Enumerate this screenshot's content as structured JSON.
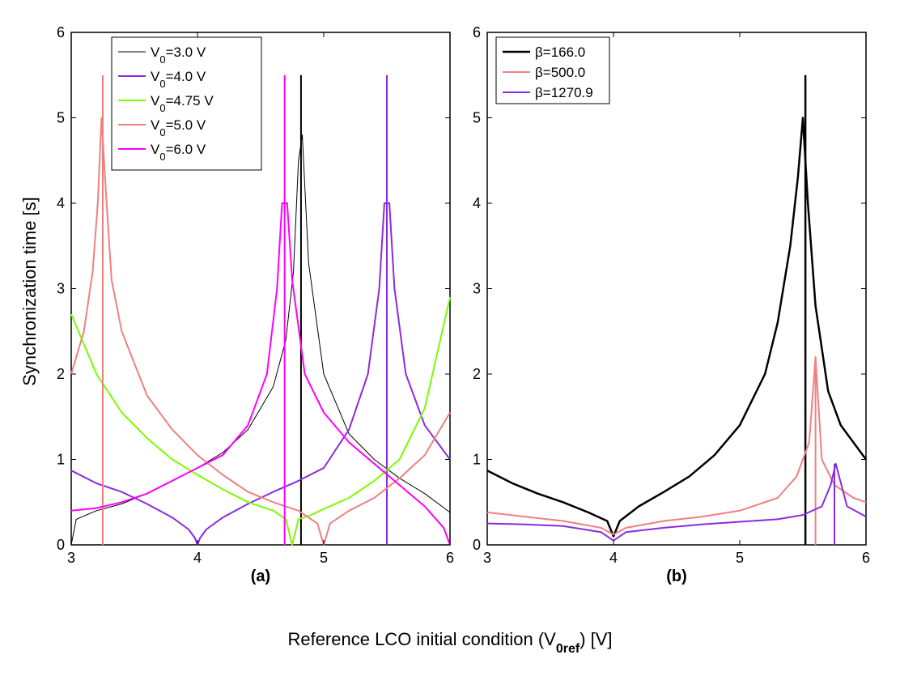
{
  "figure": {
    "ylabel": "Synchronization time  [s]",
    "xlabel_main": "Reference LCO initial condition (V",
    "xlabel_sub": "0ref",
    "xlabel_tail": ")  [V]"
  },
  "chart_data": [
    {
      "type": "line",
      "panel_label": "(a)",
      "xlim": [
        3,
        6
      ],
      "ylim": [
        0,
        6
      ],
      "xticks": [
        3,
        4,
        5,
        6
      ],
      "yticks": [
        0,
        1,
        2,
        3,
        4,
        5,
        6
      ],
      "grid": false,
      "legend_position": "top-left",
      "series": [
        {
          "name": "V₀=3.0 V",
          "legend_main": "V",
          "legend_sub": "0",
          "legend_tail": "=3.0 V",
          "color": "#000000",
          "width": 1,
          "x": [
            3.0,
            3.04,
            3.2,
            3.4,
            3.6,
            3.8,
            4.0,
            4.2,
            4.4,
            4.6,
            4.7,
            4.76,
            4.8,
            4.83,
            4.88,
            5.0,
            5.2,
            5.4,
            5.6,
            5.8,
            6.0
          ],
          "y": [
            0.0,
            0.3,
            0.4,
            0.48,
            0.6,
            0.75,
            0.9,
            1.08,
            1.35,
            1.85,
            2.4,
            3.2,
            4.5,
            4.8,
            3.3,
            2.0,
            1.3,
            1.0,
            0.78,
            0.6,
            0.38
          ],
          "spikes": [
            {
              "x": 4.82,
              "y": 5.5
            }
          ]
        },
        {
          "name": "V₀=4.0 V",
          "legend_main": "V",
          "legend_sub": "0",
          "legend_tail": "=4.0 V",
          "color": "#8a2be2",
          "width": 2,
          "x": [
            3.0,
            3.2,
            3.4,
            3.6,
            3.8,
            3.93,
            3.98,
            4.0,
            4.02,
            4.07,
            4.2,
            4.4,
            4.6,
            4.8,
            5.0,
            5.2,
            5.35,
            5.44,
            5.48,
            5.52,
            5.56,
            5.65,
            5.8,
            6.0
          ],
          "y": [
            0.87,
            0.72,
            0.62,
            0.48,
            0.32,
            0.18,
            0.08,
            0.0,
            0.08,
            0.18,
            0.32,
            0.48,
            0.62,
            0.75,
            0.9,
            1.35,
            2.0,
            3.0,
            4.0,
            4.0,
            3.0,
            2.0,
            1.4,
            1.0
          ],
          "spikes": [
            {
              "x": 5.5,
              "y": 5.5
            }
          ]
        },
        {
          "name": "V₀=4.75 V",
          "legend_main": "V",
          "legend_sub": "0",
          "legend_tail": "=4.75 V",
          "color": "#7cfc00",
          "width": 2,
          "x": [
            3.0,
            3.2,
            3.4,
            3.6,
            3.8,
            4.0,
            4.2,
            4.4,
            4.6,
            4.7,
            4.75,
            4.8,
            4.9,
            5.0,
            5.2,
            5.4,
            5.6,
            5.8,
            6.0
          ],
          "y": [
            2.7,
            2.0,
            1.55,
            1.25,
            1.0,
            0.82,
            0.65,
            0.5,
            0.4,
            0.3,
            0.0,
            0.3,
            0.35,
            0.42,
            0.55,
            0.75,
            1.0,
            1.6,
            2.9
          ],
          "spikes": []
        },
        {
          "name": "V₀=5.0 V",
          "legend_main": "V",
          "legend_sub": "0",
          "legend_tail": "=5.0 V",
          "color": "#f08080",
          "width": 2,
          "x": [
            3.0,
            3.1,
            3.17,
            3.21,
            3.24,
            3.28,
            3.32,
            3.4,
            3.6,
            3.8,
            4.0,
            4.2,
            4.4,
            4.6,
            4.8,
            4.95,
            5.0,
            5.05,
            5.2,
            5.4,
            5.6,
            5.8,
            6.0
          ],
          "y": [
            2.0,
            2.5,
            3.2,
            4.0,
            5.0,
            4.0,
            3.1,
            2.5,
            1.75,
            1.35,
            1.05,
            0.82,
            0.62,
            0.5,
            0.4,
            0.25,
            0.0,
            0.25,
            0.4,
            0.55,
            0.78,
            1.05,
            1.55
          ],
          "spikes": [
            {
              "x": 3.25,
              "y": 5.5
            }
          ]
        },
        {
          "name": "V₀=6.0 V",
          "legend_main": "V",
          "legend_sub": "0",
          "legend_tail": "=6.0 V",
          "color": "#ff00ff",
          "width": 2,
          "x": [
            3.0,
            3.2,
            3.4,
            3.6,
            3.8,
            4.0,
            4.2,
            4.4,
            4.55,
            4.63,
            4.67,
            4.71,
            4.75,
            4.85,
            5.0,
            5.2,
            5.4,
            5.6,
            5.8,
            5.95,
            6.0
          ],
          "y": [
            0.4,
            0.43,
            0.5,
            0.6,
            0.75,
            0.9,
            1.05,
            1.4,
            2.0,
            3.0,
            4.0,
            4.0,
            3.1,
            2.0,
            1.55,
            1.2,
            0.95,
            0.7,
            0.45,
            0.2,
            0.0
          ],
          "spikes": [
            {
              "x": 4.69,
              "y": 5.5
            }
          ]
        }
      ]
    },
    {
      "type": "line",
      "panel_label": "(b)",
      "xlim": [
        3,
        6
      ],
      "ylim": [
        0,
        6
      ],
      "xticks": [
        3,
        4,
        5,
        6
      ],
      "yticks": [
        0,
        1,
        2,
        3,
        4,
        5,
        6
      ],
      "grid": false,
      "legend_position": "top-left",
      "series": [
        {
          "name": "β=166.0",
          "legend_main": "β=166.0",
          "legend_sub": "",
          "legend_tail": "",
          "color": "#000000",
          "width": 2.5,
          "x": [
            3.0,
            3.2,
            3.4,
            3.6,
            3.8,
            3.95,
            4.0,
            4.05,
            4.2,
            4.4,
            4.6,
            4.8,
            5.0,
            5.2,
            5.3,
            5.4,
            5.46,
            5.5,
            5.54,
            5.6,
            5.7,
            5.8,
            6.0
          ],
          "y": [
            0.87,
            0.72,
            0.6,
            0.5,
            0.38,
            0.28,
            0.1,
            0.28,
            0.45,
            0.62,
            0.8,
            1.05,
            1.4,
            2.0,
            2.6,
            3.5,
            4.3,
            5.0,
            4.0,
            2.8,
            1.8,
            1.4,
            1.0
          ],
          "spikes": [
            {
              "x": 5.52,
              "y": 5.5
            }
          ]
        },
        {
          "name": "β=500.0",
          "legend_main": "β=500.0",
          "legend_sub": "",
          "legend_tail": "",
          "color": "#f08080",
          "width": 2,
          "x": [
            3.0,
            3.3,
            3.6,
            3.9,
            4.0,
            4.1,
            4.4,
            4.7,
            5.0,
            5.3,
            5.45,
            5.55,
            5.6,
            5.65,
            5.75,
            5.9,
            6.0
          ],
          "y": [
            0.38,
            0.33,
            0.28,
            0.2,
            0.12,
            0.2,
            0.28,
            0.33,
            0.4,
            0.55,
            0.8,
            1.2,
            2.2,
            1.0,
            0.7,
            0.55,
            0.5
          ],
          "spikes": [
            {
              "x": 5.6,
              "y": 2.2
            }
          ]
        },
        {
          "name": "β=1270.9",
          "legend_main": "β=1270.9",
          "legend_sub": "",
          "legend_tail": "",
          "color": "#8a2be2",
          "width": 2,
          "x": [
            3.0,
            3.3,
            3.6,
            3.9,
            4.0,
            4.1,
            4.4,
            4.7,
            5.0,
            5.3,
            5.5,
            5.65,
            5.72,
            5.76,
            5.85,
            6.0
          ],
          "y": [
            0.25,
            0.24,
            0.22,
            0.15,
            0.05,
            0.15,
            0.2,
            0.24,
            0.27,
            0.3,
            0.35,
            0.45,
            0.7,
            0.95,
            0.45,
            0.33
          ],
          "spikes": [
            {
              "x": 5.75,
              "y": 0.95
            }
          ]
        }
      ]
    }
  ]
}
